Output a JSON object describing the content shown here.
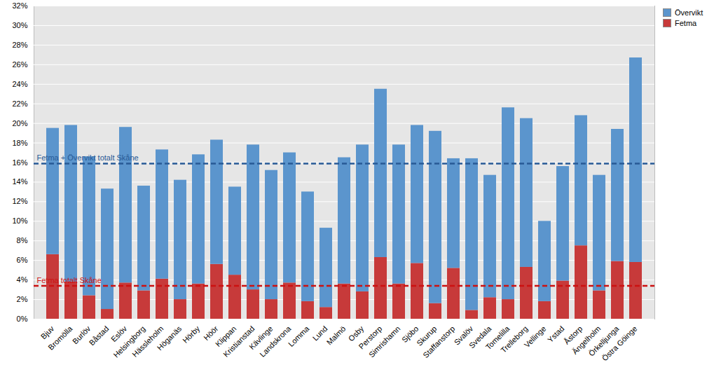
{
  "chart_data": {
    "type": "bar",
    "stacked": true,
    "grid": true,
    "legend": "top-right",
    "categories": [
      "Bjuv",
      "Bromölla",
      "Burlöv",
      "Båstad",
      "Eslöv",
      "Helsingborg",
      "Hässleholm",
      "Höganäs",
      "Hörby",
      "Höör",
      "Klippan",
      "Kristianstad",
      "Kävlinge",
      "Landskrona",
      "Lomma",
      "Lund",
      "Malmö",
      "Osby",
      "Perstorp",
      "Simrishamn",
      "Sjöbo",
      "Skurup",
      "Staffanstorp",
      "Svalöv",
      "Svedala",
      "Tomelilla",
      "Trelleborg",
      "Vellinge",
      "Ystad",
      "Åstorp",
      "Ängelholm",
      "Örkelljunga",
      "Östra Göinge"
    ],
    "series": [
      {
        "name": "Övervikt",
        "color": "#5b95cd",
        "values": [
          12.9,
          16.0,
          14.2,
          12.3,
          15.9,
          10.7,
          13.2,
          12.2,
          13.2,
          12.7,
          9.0,
          14.8,
          13.2,
          13.3,
          11.2,
          8.1,
          12.9,
          15.0,
          17.2,
          14.2,
          14.1,
          17.6,
          11.2,
          15.5,
          12.5,
          19.6,
          15.2,
          8.2,
          11.7,
          13.3,
          11.8,
          13.5,
          20.9
        ]
      },
      {
        "name": "Fetma",
        "color": "#c73a3a",
        "values": [
          6.6,
          3.8,
          2.4,
          1.0,
          3.7,
          2.9,
          4.1,
          2.0,
          3.6,
          5.6,
          4.5,
          3.0,
          2.0,
          3.7,
          1.8,
          1.2,
          3.6,
          2.8,
          6.3,
          3.6,
          5.7,
          1.6,
          5.2,
          0.9,
          2.2,
          2.0,
          5.3,
          1.8,
          3.9,
          7.5,
          2.9,
          5.9,
          5.8
        ]
      }
    ],
    "annotations": [
      {
        "label": "Fetma + Övervikt totalt Skåne",
        "value": 15.9,
        "color": "#285a96"
      },
      {
        "label": "Fetma totalt Skåne",
        "value": 3.4,
        "color": "#cc1111"
      }
    ],
    "ylim": [
      0,
      32
    ],
    "yticks": [
      {
        "value": 0,
        "label": "0%"
      },
      {
        "value": 2,
        "label": "2%"
      },
      {
        "value": 4,
        "label": "4%"
      },
      {
        "value": 6,
        "label": "6%"
      },
      {
        "value": 8,
        "label": "8%"
      },
      {
        "value": 10,
        "label": "10%"
      },
      {
        "value": 12,
        "label": "12%"
      },
      {
        "value": 14,
        "label": "14%"
      },
      {
        "value": 16,
        "label": "16%"
      },
      {
        "value": 18,
        "label": "18%"
      },
      {
        "value": 20,
        "label": "20%"
      },
      {
        "value": 22,
        "label": "22%"
      },
      {
        "value": 24,
        "label": "24%"
      },
      {
        "value": 26,
        "label": "26%"
      },
      {
        "value": 28,
        "label": "28%"
      },
      {
        "value": 30,
        "label": "30%"
      },
      {
        "value": 32,
        "label": "32%"
      }
    ]
  }
}
